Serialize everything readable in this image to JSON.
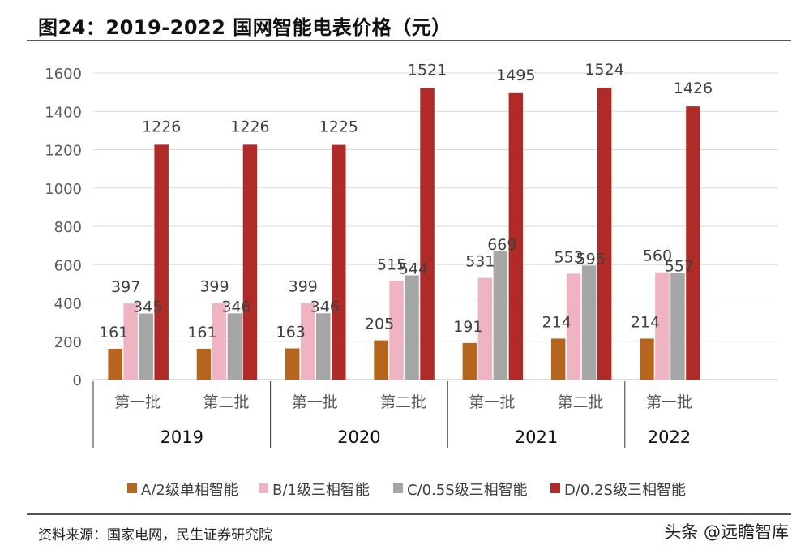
{
  "header": {
    "title": "图24：2019-2022 国网智能电表价格（元）"
  },
  "footer": {
    "source": "资料来源：国家电网，民生证券研究院",
    "watermark": "头条 @远瞻智库"
  },
  "chart_data": {
    "type": "bar",
    "title": "图24：2019-2022 国网智能电表价格（元）",
    "xlabel": "",
    "ylabel": "",
    "ylim": [
      0,
      1600
    ],
    "yticks": [
      0,
      200,
      400,
      600,
      800,
      1000,
      1200,
      1400,
      1600
    ],
    "grid": true,
    "legend_position": "bottom",
    "categories": [
      "第一批",
      "第二批",
      "第一批",
      "第二批",
      "第一批",
      "第二批",
      "第一批"
    ],
    "groups": [
      {
        "label": "2019",
        "span": 2
      },
      {
        "label": "2020",
        "span": 2
      },
      {
        "label": "2021",
        "span": 2
      },
      {
        "label": "2022",
        "span": 1
      }
    ],
    "series": [
      {
        "name": "A/2级单相智能",
        "color": "#B5651D",
        "values": [
          161,
          161,
          163,
          205,
          191,
          214,
          214
        ]
      },
      {
        "name": "B/1级三相智能",
        "color": "#EFB3C2",
        "values": [
          397,
          399,
          399,
          515,
          531,
          553,
          560
        ]
      },
      {
        "name": "C/0.5S级三相智能",
        "color": "#A6A6A6",
        "values": [
          345,
          346,
          346,
          544,
          669,
          595,
          557
        ]
      },
      {
        "name": "D/0.2S级三相智能",
        "color": "#B02A27",
        "values": [
          1226,
          1226,
          1225,
          1521,
          1495,
          1524,
          1426
        ]
      }
    ]
  }
}
